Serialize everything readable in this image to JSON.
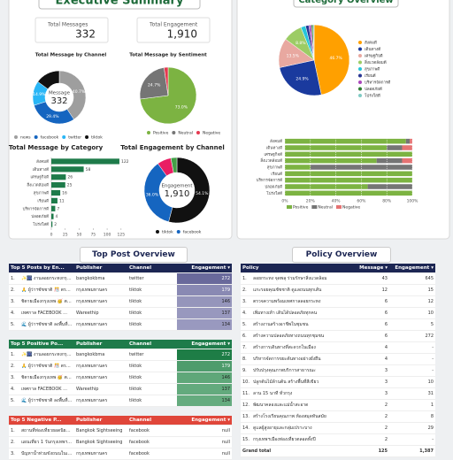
{
  "executive_summary": {
    "title": "Executive Summary",
    "cards": [
      {
        "label": "Total Messages",
        "value": 332
      },
      {
        "label": "Total Engagement",
        "value": "1,910"
      }
    ],
    "charts": [
      {
        "type": "donut",
        "title": "Total Message by Channel",
        "center_label": "Message",
        "center_value": 332,
        "categories": [
          "news",
          "facebook",
          "twitter",
          "tiktok"
        ],
        "values": [
          40.7,
          29.4,
          14.9,
          15.0
        ],
        "value_labels": [
          "40.7%",
          "29.4%",
          "14.9%",
          null
        ],
        "colors": [
          "#9e9e9e",
          "#1565c0",
          "#29b6f6",
          "#111111"
        ]
      },
      {
        "type": "donut",
        "title": "Total Message by Sentiment",
        "categories": [
          "Positive",
          "Neutral",
          "Negative"
        ],
        "values": [
          73.0,
          24.7,
          2.3
        ],
        "value_labels": [
          "73.0%",
          "24.7%",
          null
        ],
        "colors": [
          "#7cb342",
          "#757575",
          "#e53950"
        ]
      },
      {
        "type": "bar",
        "orientation": "horizontal",
        "title": "Total Message by Category",
        "categories": [
          "สังคมดี",
          "เดินทางดี",
          "เศรษฐกิจดี",
          "สิ่งแวดล้อมดี",
          "สุขภาพดี",
          "เรียนดี",
          "บริหารจัดการดี",
          "ปลอดภัยดี",
          "โปร่งใสดี"
        ],
        "values": [
          122,
          58,
          26,
          25,
          16,
          11,
          7,
          4,
          2
        ],
        "color": "#1e7b4a",
        "xlim": [
          0,
          130
        ],
        "xticks": [
          0,
          25,
          50,
          75,
          100,
          125
        ]
      },
      {
        "type": "donut",
        "title": "Total Engagement by Channel",
        "center_label": "Engagement",
        "center_value": "1,910",
        "categories": [
          "tiktok",
          "facebook",
          null,
          null
        ],
        "values": [
          54.1,
          36.0,
          6.9,
          3.0
        ],
        "value_labels": [
          "54.1%",
          "36.0%",
          null,
          null
        ],
        "colors": [
          "#111111",
          "#1565c0",
          "#e91e63",
          "#43a047"
        ]
      }
    ]
  },
  "category_overview": {
    "title": "Category Overview",
    "charts": [
      {
        "type": "pie",
        "categories": [
          "สังคมดี",
          "เดินทางดี",
          "เศรษฐกิจดี",
          "สิ่งแวดล้อมดี",
          "สุขภาพดี",
          "เรียนดี",
          "บริหารจัดการดี",
          "ปลอดภัยดี",
          "โปร่งใสดี"
        ],
        "values": [
          46.7,
          24.9,
          13.5,
          8.8,
          2.2,
          1.5,
          1.1,
          0.8,
          0.5
        ],
        "value_labels": [
          "46.7%",
          "24.9%",
          "13.5%",
          "8.8%",
          null,
          null,
          null,
          null,
          null
        ],
        "colors": [
          "#ffa000",
          "#1a3a9e",
          "#e8a8a0",
          "#9ccc65",
          "#26c6da",
          "#283593",
          "#ab47bc",
          "#2e7d32",
          "#80cbc4"
        ]
      },
      {
        "type": "stacked_bar",
        "orientation": "horizontal",
        "categories": [
          "สังคมดี",
          "เดินทางดี",
          "เศรษฐกิจดี",
          "สิ่งแวดล้อมดี",
          "สุขภาพดี",
          "เรียนดี",
          "บริหารจัดการดี",
          "ปลอดภัยดี",
          "โปร่งใสดี"
        ],
        "series": [
          {
            "name": "Positive",
            "color": "#7cb342",
            "values": [
              95,
              80,
              100,
              72,
              20,
              100,
              100,
              65,
              100
            ]
          },
          {
            "name": "Neutral",
            "color": "#757575",
            "values": [
              3,
              12,
              0,
              20,
              80,
              0,
              0,
              35,
              0
            ]
          },
          {
            "name": "Negative",
            "color": "#e57373",
            "values": [
              2,
              8,
              0,
              8,
              0,
              0,
              0,
              0,
              0
            ]
          }
        ],
        "xlim": [
          0,
          100
        ],
        "xticks": [
          {
            "value": 0,
            "label": "0%"
          },
          {
            "value": 20,
            "label": "20%"
          },
          {
            "value": 40,
            "label": "40%"
          },
          {
            "value": 60,
            "label": "60%"
          },
          {
            "value": 80,
            "label": "80%"
          },
          {
            "value": 100,
            "label": "100%"
          }
        ],
        "grid": true
      }
    ]
  },
  "top_post_overview": {
    "title": "Top Post Overview",
    "tables": [
      {
        "columns": [
          "Top 5 Posts by En...",
          "Publisher",
          "Channel",
          "Engagement"
        ],
        "rows": [
          [
            "1.",
            "✨🎆 งานลอยกระทงกรุงเ...",
            "bangkokbma",
            "twitter",
            272
          ],
          [
            "2.",
            "🙏 ผู้ว่าฯชัชชาติ 🎊 ตรวจ...",
            "กรุงเทพมหานคร",
            "tiktok",
            179
          ],
          [
            "3.",
            "ชิตายเมืองกรุงเทพ 🥳 ต...",
            "กรุงเทพมหานคร",
            "tiktok",
            146
          ],
          [
            "4.",
            "เทศกาล FACEBOOK ...",
            "Wareethip",
            "tiktok",
            137
          ],
          [
            "5.",
            "🌊 ผู้ว่าฯชัชชาติ ลงพื้นที่...",
            "กรุงเทพมหานคร",
            "tiktok",
            134
          ]
        ]
      },
      {
        "columns": [
          "Top 5 Positive Po...",
          "Publisher",
          "Channel",
          "Engagement"
        ],
        "rows": [
          [
            "1.",
            "✨🎆 งานลอยกระทงกรุงเ...",
            "bangkokbma",
            "twitter",
            272
          ],
          [
            "2.",
            "🙏 ผู้ว่าฯชัชชาติ 🎊 ตรวจ...",
            "กรุงเทพมหานคร",
            "tiktok",
            179
          ],
          [
            "3.",
            "ชิตายเมืองกรุงเทพ 🥳 ต...",
            "กรุงเทพมหานคร",
            "tiktok",
            146
          ],
          [
            "4.",
            "เทศกาล FACEBOOK ...",
            "Wareethip",
            "tiktok",
            137
          ],
          [
            "5.",
            "🌊 ผู้ว่าฯชัชชาติ ลงพื้นที่...",
            "กรุงเทพมหานคร",
            "tiktok",
            134
          ]
        ]
      },
      {
        "columns": [
          "Top 5 Negative P...",
          "Publisher",
          "Channel",
          "Engagement"
        ],
        "rows": [
          [
            "1.",
            "สถานที่ท่องเที่ยวยอดนิยมใน...",
            "Bangkok Sightseeing",
            "facebook",
            "null"
          ],
          [
            "2.",
            "แผนเที่ยว 1 วันกรุงเทพฯ...",
            "Bangkok Sightseeing",
            "facebook",
            "null"
          ],
          [
            "3.",
            "ปัญหาน้ำท่วมขังถนนในเมือง...",
            "กรุงเทพมหานคร",
            "facebook",
            "null"
          ]
        ]
      }
    ]
  },
  "policy_overview": {
    "title": "Policy Overview",
    "columns": [
      "Policy",
      "Message",
      "Engagement"
    ],
    "rows": [
      [
        "1.",
        "ลอยกระทง จุดพลุ ร่วมรักษาสิ่งแวดล้อม",
        43,
        645
      ],
      [
        "2.",
        "แกะรอยคุณชัชชาติ ดูแลถนนทุกเส้น",
        12,
        15
      ],
      [
        "3.",
        "ตรวจความพร้อมเทศกาลลอยกระทง",
        6,
        12
      ],
      [
        "4.",
        "เพิ่มทางเท้า เดินได้ปลอดภัยทุกคน",
        6,
        10
      ],
      [
        "5.",
        "สร้างงานสร้างอาชีพในชุมชน",
        6,
        5
      ],
      [
        "6.",
        "สร้างความปลอดภัยทางถนนทุกชุมชน",
        6,
        272
      ],
      [
        "7.",
        "สร้างการเดินทางที่สะดวกในเมือง",
        4,
        "-"
      ],
      [
        "8.",
        "บริหารจัดการขยะต้นทางอย่างยั่งยืน",
        4,
        "-"
      ],
      [
        "9.",
        "ปรับปรุงคุณภาพบริการสาธารณะ",
        3,
        "-"
      ],
      [
        "10.",
        "ปลูกต้นไม้ล้านต้น สร้างพื้นที่สีเขียว",
        3,
        10
      ],
      [
        "11.",
        "ลาน 15 นาที ทั่วกรุง",
        3,
        31
      ],
      [
        "12.",
        "พัฒนาคลองและแม่น้ำสะอาด",
        2,
        1
      ],
      [
        "13.",
        "สร้างโรงเรียนคุณภาพ ห้องสมุดทันสมัย",
        2,
        8
      ],
      [
        "14.",
        "ดูแลผู้สูงอายุและกลุ่มเปราะบาง",
        2,
        29
      ],
      [
        "15.",
        "กรุงเทพฯเมืองท่องเที่ยวตลอดทั้งปี",
        2,
        "-"
      ]
    ],
    "total": [
      "Grand total",
      125,
      "1,387"
    ]
  }
}
